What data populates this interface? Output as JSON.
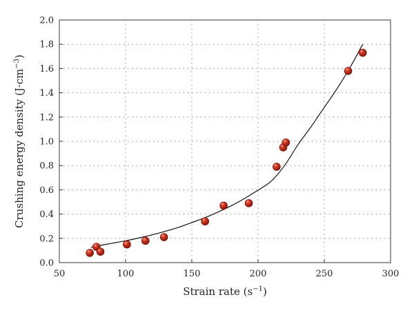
{
  "chart_data": {
    "type": "scatter",
    "title": "",
    "xlabel": "Strain rate (s",
    "xlabel_sup": "−1",
    "xlabel_end": ")",
    "ylabel": "Crushing energy density (J·cm",
    "ylabel_sup": "−3",
    "ylabel_end": ")",
    "xlim": [
      50,
      300
    ],
    "ylim": [
      0.0,
      2.0
    ],
    "xticks": [
      50,
      100,
      150,
      200,
      250,
      300
    ],
    "xtick_labels": [
      "50",
      "100",
      "150",
      "200",
      "250",
      "300"
    ],
    "yticks": [
      0.0,
      0.2,
      0.4,
      0.6,
      0.8,
      1.0,
      1.2,
      1.4,
      1.6,
      1.8,
      2.0
    ],
    "ytick_labels": [
      "0.0",
      "0.2",
      "0.4",
      "0.6",
      "0.8",
      "1.0",
      "1.2",
      "1.4",
      "1.6",
      "1.8",
      "2.0"
    ],
    "grid": true,
    "legend": "none",
    "series": [
      {
        "x": [
          73,
          78,
          81,
          101,
          115,
          129,
          160,
          174,
          193,
          214,
          219,
          221,
          268,
          279
        ],
        "y": [
          0.08,
          0.13,
          0.09,
          0.15,
          0.18,
          0.21,
          0.34,
          0.47,
          0.49,
          0.79,
          0.95,
          0.99,
          1.58,
          1.73
        ],
        "marker_color": "#c0281a"
      }
    ],
    "fit": {
      "x": [
        74,
        80,
        90,
        100,
        110,
        120,
        130,
        140,
        150,
        160,
        170,
        180,
        190,
        200,
        210,
        220,
        230,
        240,
        250,
        260,
        270,
        279
      ],
      "y": [
        0.125,
        0.14,
        0.16,
        0.18,
        0.203,
        0.229,
        0.258,
        0.291,
        0.33,
        0.371,
        0.418,
        0.47,
        0.53,
        0.597,
        0.672,
        0.8,
        0.97,
        1.12,
        1.28,
        1.44,
        1.62,
        1.8
      ],
      "color": "#111111"
    }
  }
}
